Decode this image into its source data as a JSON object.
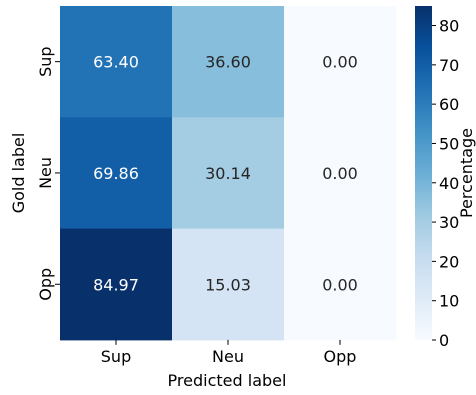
{
  "chart_data": {
    "type": "heatmap",
    "xlabel": "Predicted label",
    "ylabel": "Gold label",
    "x_categories": [
      "Sup",
      "Neu",
      "Opp"
    ],
    "y_categories": [
      "Sup",
      "Neu",
      "Opp"
    ],
    "values": [
      [
        63.4,
        36.6,
        0.0
      ],
      [
        69.86,
        30.14,
        0.0
      ],
      [
        84.97,
        15.03,
        0.0
      ]
    ],
    "cell_labels": [
      [
        "63.40",
        "36.60",
        "0.00"
      ],
      [
        "69.86",
        "30.14",
        "0.00"
      ],
      [
        "84.97",
        "15.03",
        "0.00"
      ]
    ],
    "colorbar": {
      "label": "Percentage",
      "range": [
        0,
        84.97
      ],
      "ticks": [
        "0",
        "10",
        "20",
        "30",
        "40",
        "50",
        "60",
        "70",
        "80"
      ],
      "colormap": "Blues"
    }
  }
}
